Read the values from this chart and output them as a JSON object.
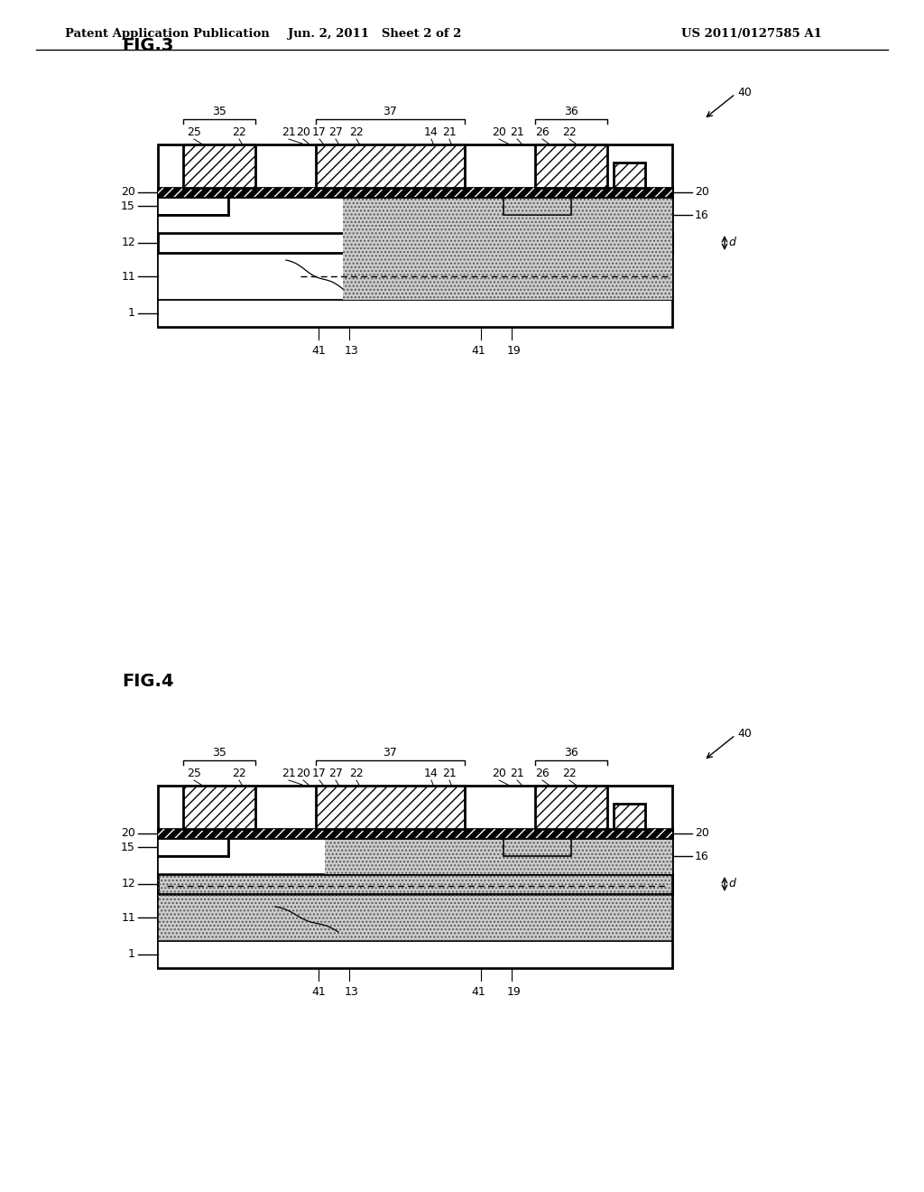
{
  "header_left": "Patent Application Publication",
  "header_center": "Jun. 2, 2011   Sheet 2 of 2",
  "header_right": "US 2011/0127585 A1",
  "fig3_title": "FIG.3",
  "fig4_title": "FIG.4",
  "bg_color": "#ffffff",
  "line_color": "#000000"
}
